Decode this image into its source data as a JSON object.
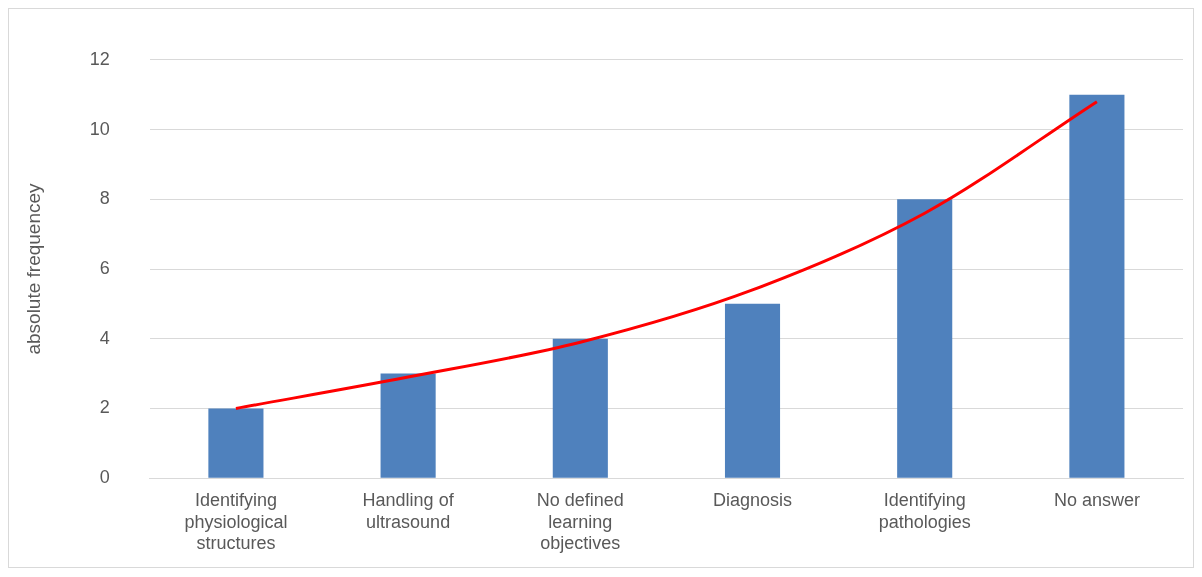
{
  "chart_data": {
    "type": "bar",
    "ylabel": "absolute frequencey",
    "categories": [
      "Identifying physiological structures",
      "Handling of ultrasound",
      "No defined learning objectives",
      "Diagnosis",
      "Identifying pathologies",
      "No answer"
    ],
    "series": [
      {
        "color": "#4f81bd",
        "values": [
          2,
          3,
          4,
          5,
          8,
          11
        ]
      },
      {
        "type": "line",
        "color": "#ff0000",
        "values": [
          2.0,
          2.9,
          3.9,
          5.4,
          7.6,
          10.8
        ],
        "marker": "none"
      }
    ],
    "ylim": [
      0,
      12
    ],
    "yticks": [
      0,
      2,
      4,
      6,
      8,
      10,
      12
    ],
    "grid": "y"
  }
}
